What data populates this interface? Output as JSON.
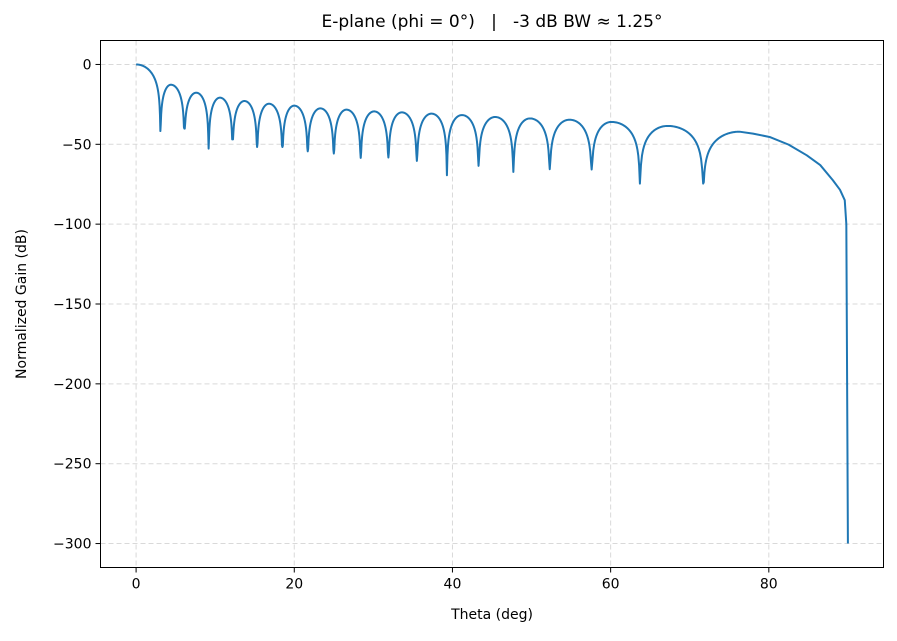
{
  "chart_data": {
    "type": "line",
    "title": "E-plane (phi = 0°)   |   -3 dB BW ≈ 1.25°",
    "xlabel": "Theta (deg)",
    "ylabel": "Normalized Gain (dB)",
    "xlim": [
      -4.5,
      94.5
    ],
    "ylim": [
      -315,
      15
    ],
    "xticks": [
      0,
      20,
      40,
      60,
      80
    ],
    "xtick_labels": [
      "0",
      "20",
      "40",
      "60",
      "80"
    ],
    "yticks": [
      0,
      -50,
      -100,
      -150,
      -200,
      -250,
      -300
    ],
    "ytick_labels": [
      "0",
      "−50",
      "−100",
      "−150",
      "−200",
      "−250",
      "−300"
    ],
    "grid": true,
    "line_color": "#1f77b4",
    "series": [
      {
        "nulls": [
          {
            "x": 3.07,
            "y": -41.7
          },
          {
            "x": 6.1,
            "y": -40.2
          },
          {
            "x": 9.17,
            "y": -52.7
          },
          {
            "x": 12.2,
            "y": -46.9
          },
          {
            "x": 15.3,
            "y": -51.7
          },
          {
            "x": 18.5,
            "y": -51.7
          },
          {
            "x": 21.7,
            "y": -54.4
          },
          {
            "x": 25.0,
            "y": -55.8
          },
          {
            "x": 28.4,
            "y": -58.5
          },
          {
            "x": 31.9,
            "y": -58.3
          },
          {
            "x": 35.5,
            "y": -60.4
          },
          {
            "x": 39.3,
            "y": -69.4
          },
          {
            "x": 43.3,
            "y": -63.5
          },
          {
            "x": 47.7,
            "y": -67.3
          },
          {
            "x": 52.3,
            "y": -65.6
          },
          {
            "x": 57.6,
            "y": -65.8
          },
          {
            "x": 63.7,
            "y": -74.6
          },
          {
            "x": 71.7,
            "y": -74.6
          }
        ],
        "peaks": [
          {
            "x": 0,
            "y": 0
          },
          {
            "x": 4.4,
            "y": -12.7
          },
          {
            "x": 7.6,
            "y": -17.7
          },
          {
            "x": 10.6,
            "y": -20.8
          },
          {
            "x": 13.7,
            "y": -22.9
          },
          {
            "x": 16.8,
            "y": -24.6
          },
          {
            "x": 20.0,
            "y": -25.8
          },
          {
            "x": 23.3,
            "y": -27.5
          },
          {
            "x": 26.6,
            "y": -28.3
          },
          {
            "x": 30.1,
            "y": -29.4
          },
          {
            "x": 33.6,
            "y": -30.0
          },
          {
            "x": 37.35,
            "y": -30.8
          },
          {
            "x": 41.2,
            "y": -31.7
          },
          {
            "x": 45.4,
            "y": -32.9
          },
          {
            "x": 49.8,
            "y": -33.8
          },
          {
            "x": 54.8,
            "y": -34.6
          },
          {
            "x": 60.1,
            "y": -36.0
          },
          {
            "x": 67.2,
            "y": -38.5
          },
          {
            "x": 76.3,
            "y": -42.1
          }
        ],
        "tail": [
          {
            "x": 78.0,
            "y": -43.3
          },
          {
            "x": 80.1,
            "y": -45.4
          },
          {
            "x": 82.5,
            "y": -50.2
          },
          {
            "x": 84.8,
            "y": -56.9
          },
          {
            "x": 86.5,
            "y": -63.0
          },
          {
            "x": 88.1,
            "y": -72.5
          },
          {
            "x": 89.0,
            "y": -78.5
          },
          {
            "x": 89.6,
            "y": -85.0
          },
          {
            "x": 89.8,
            "y": -100.0
          },
          {
            "x": 90.0,
            "y": -300.0
          }
        ]
      }
    ]
  }
}
